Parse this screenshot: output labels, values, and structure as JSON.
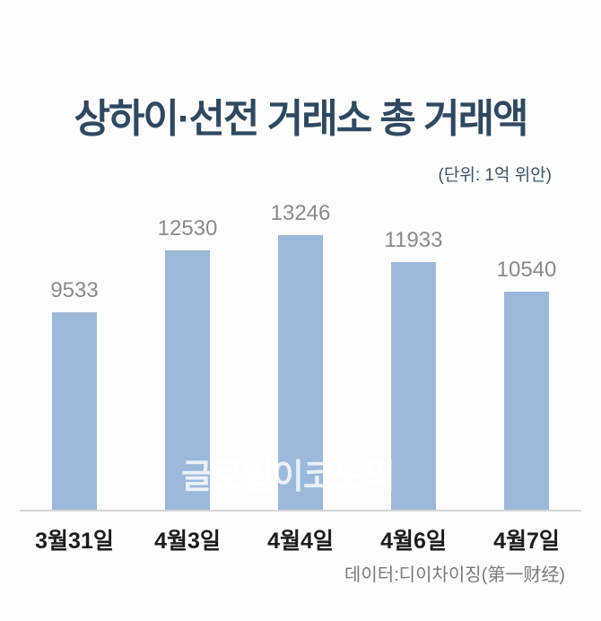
{
  "title": "상하이·선전 거래소 총 거래액",
  "unit_label": "(단위: 1억 위안)",
  "source": "데이터:디이차이징(第一财经)",
  "watermark": "글로벌이코노믹",
  "colors": {
    "background": "#fdfdfd",
    "bar": "#9cb8da",
    "title": "#2e4960",
    "unit_text": "#3b5266",
    "value_label": "#8a8a8a",
    "axis_line": "#d6d6d6",
    "category_label": "#1d1d1d",
    "source_text": "#7a7a7a",
    "watermark_text": "#ffffff"
  },
  "chart_data": {
    "type": "bar",
    "title": "상하이·선전 거래소 총 거래액",
    "subtitle": "(단위: 1억 위안)",
    "unit": "1억 위안",
    "categories": [
      "3월31일",
      "4월3일",
      "4월4일",
      "4월6일",
      "4월7일"
    ],
    "values": [
      9533,
      12530,
      13246,
      11933,
      10540
    ],
    "xlabel": "",
    "ylabel": "",
    "ylim": [
      0,
      13246
    ],
    "grid": false,
    "legend": "none",
    "data_labels": true,
    "source": "데이터:디이차이징(第一财经)"
  }
}
